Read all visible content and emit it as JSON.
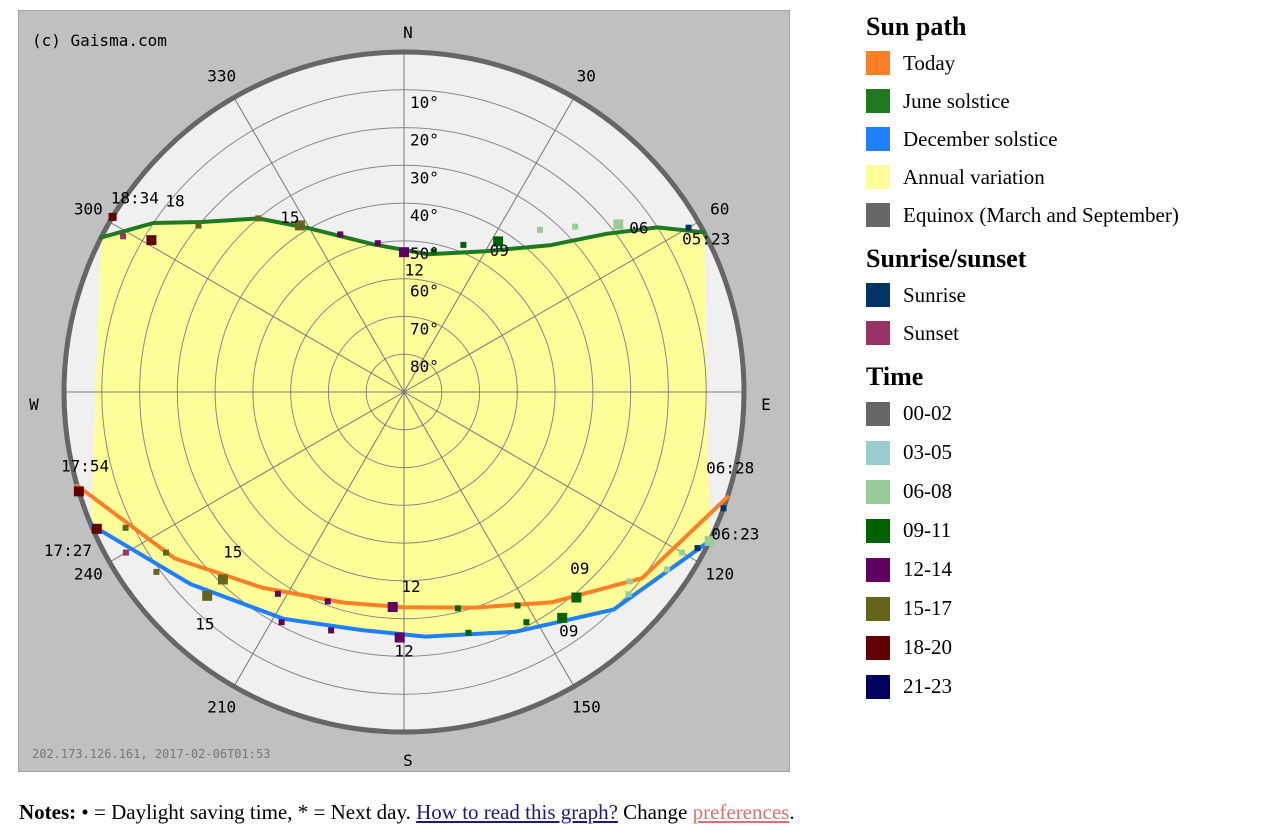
{
  "chart_data": {
    "type": "polar-sun-path",
    "copyright": "(c) Gaisma.com",
    "footer_stamp": "202.173.126.161, 2017-02-06T01:53",
    "cardinals": {
      "N": "N",
      "S": "S",
      "E": "E",
      "W": "W"
    },
    "azimuth_labels": [
      {
        "az": 30,
        "label": "30"
      },
      {
        "az": 60,
        "label": "60"
      },
      {
        "az": 120,
        "label": "120"
      },
      {
        "az": 150,
        "label": "150"
      },
      {
        "az": 210,
        "label": "210"
      },
      {
        "az": 240,
        "label": "240"
      },
      {
        "az": 300,
        "label": "300"
      },
      {
        "az": 330,
        "label": "330"
      }
    ],
    "altitude_labels": [
      "10°",
      "20°",
      "30°",
      "40°",
      "50°",
      "60°",
      "70°",
      "80°"
    ],
    "altitude_rings": [
      0,
      10,
      20,
      30,
      40,
      50,
      60,
      70,
      80
    ],
    "azimuth_spokes": [
      0,
      30,
      60,
      90,
      120,
      150,
      180,
      210,
      240,
      270,
      300,
      330
    ],
    "series": [
      {
        "name": "June solstice",
        "color": "#1f7a1f",
        "points": [
          [
            297,
            0
          ],
          [
            304,
            10
          ],
          [
            310,
            20
          ],
          [
            320,
            30
          ],
          [
            330,
            40
          ],
          [
            348,
            50
          ],
          [
            10,
            53
          ],
          [
            30,
            47
          ],
          [
            45,
            35
          ],
          [
            52,
            22
          ],
          [
            57,
            10
          ],
          [
            62,
            0
          ]
        ]
      },
      {
        "name": "Today",
        "color": "#ff7f27",
        "points": [
          [
            254,
            0
          ],
          [
            234,
            15
          ],
          [
            216,
            26
          ],
          [
            196,
            32
          ],
          [
            180,
            33
          ],
          [
            162,
            30
          ],
          [
            145,
            22
          ],
          [
            128,
            10
          ],
          [
            108,
            0
          ]
        ]
      },
      {
        "name": "December solstice",
        "color": "#1e7fff",
        "points": [
          [
            247,
            0
          ],
          [
            228,
            14
          ],
          [
            208,
            22
          ],
          [
            190,
            26
          ],
          [
            175,
            25
          ],
          [
            155,
            20
          ],
          [
            136,
            10
          ],
          [
            116,
            0
          ]
        ]
      }
    ],
    "hour_markers": [
      {
        "az": 301,
        "alt": 0,
        "color": "#610000",
        "size": 8
      },
      {
        "az": 299,
        "alt": 5,
        "color": "#993366",
        "size": 6
      },
      {
        "az": 301,
        "alt": 12,
        "color": "#610000",
        "size": 10
      },
      {
        "az": 309,
        "alt": 20,
        "color": "#656519",
        "size": 6
      },
      {
        "az": 320,
        "alt": 30,
        "color": "#656519",
        "size": 6
      },
      {
        "az": 328,
        "alt": 38,
        "color": "#656519",
        "size": 10
      },
      {
        "az": 338,
        "alt": 45,
        "color": "#610061",
        "size": 6
      },
      {
        "az": 350,
        "alt": 50,
        "color": "#610061",
        "size": 6
      },
      {
        "az": 0,
        "alt": 53,
        "color": "#610061",
        "size": 10
      },
      {
        "az": 12,
        "alt": 52,
        "color": "#006100",
        "size": 6
      },
      {
        "az": 22,
        "alt": 48,
        "color": "#006100",
        "size": 6
      },
      {
        "az": 32,
        "alt": 43,
        "color": "#006100",
        "size": 10
      },
      {
        "az": 40,
        "alt": 34,
        "color": "#99cc99",
        "size": 6
      },
      {
        "az": 46,
        "alt": 27,
        "color": "#99cc99",
        "size": 6
      },
      {
        "az": 52,
        "alt": 18,
        "color": "#99cc99",
        "size": 10
      },
      {
        "az": 60,
        "alt": 3,
        "color": "#003366",
        "size": 6
      },
      {
        "az": 253,
        "alt": 0,
        "color": "#610000",
        "size": 10
      },
      {
        "az": 244,
        "alt": 8,
        "color": "#656519",
        "size": 6
      },
      {
        "az": 236,
        "alt": 14,
        "color": "#656519",
        "size": 6
      },
      {
        "az": 224,
        "alt": 21,
        "color": "#656519",
        "size": 10
      },
      {
        "az": 212,
        "alt": 27,
        "color": "#610061",
        "size": 6
      },
      {
        "az": 200,
        "alt": 31,
        "color": "#610061",
        "size": 6
      },
      {
        "az": 183,
        "alt": 33,
        "color": "#610061",
        "size": 10
      },
      {
        "az": 166,
        "alt": 31,
        "color": "#006100",
        "size": 6
      },
      {
        "az": 152,
        "alt": 26,
        "color": "#006100",
        "size": 6
      },
      {
        "az": 140,
        "alt": 19,
        "color": "#006100",
        "size": 10
      },
      {
        "az": 130,
        "alt": 12,
        "color": "#99cc99",
        "size": 6
      },
      {
        "az": 120,
        "alt": 5,
        "color": "#99cc99",
        "size": 6
      },
      {
        "az": 110,
        "alt": 0,
        "color": "#003366",
        "size": 6
      },
      {
        "az": 246,
        "alt": 1,
        "color": "#610000",
        "size": 10
      },
      {
        "az": 240,
        "alt": 5,
        "color": "#993366",
        "size": 6
      },
      {
        "az": 234,
        "alt": 9,
        "color": "#656519",
        "size": 6
      },
      {
        "az": 224,
        "alt": 15,
        "color": "#656519",
        "size": 10
      },
      {
        "az": 208,
        "alt": 21,
        "color": "#610061",
        "size": 6
      },
      {
        "az": 197,
        "alt": 24,
        "color": "#610061",
        "size": 6
      },
      {
        "az": 181,
        "alt": 25,
        "color": "#610061",
        "size": 10
      },
      {
        "az": 165,
        "alt": 24,
        "color": "#006100",
        "size": 6
      },
      {
        "az": 152,
        "alt": 21,
        "color": "#006100",
        "size": 6
      },
      {
        "az": 145,
        "alt": 17,
        "color": "#006100",
        "size": 10
      },
      {
        "az": 132,
        "alt": 10,
        "color": "#99cc99",
        "size": 6
      },
      {
        "az": 124,
        "alt": 6,
        "color": "#99cc99",
        "size": 6
      },
      {
        "az": 118,
        "alt": 2,
        "color": "#003366",
        "size": 6
      },
      {
        "az": 116,
        "alt": 0,
        "color": "#99cc99",
        "size": 10
      }
    ],
    "annotations": [
      {
        "text": "18:34",
        "az": 305,
        "alt": 3
      },
      {
        "text": "18",
        "az": 309,
        "alt": 12
      },
      {
        "text": "15",
        "az": 326,
        "alt": 36
      },
      {
        "text": "12",
        "az": 5,
        "alt": 59
      },
      {
        "text": "09",
        "az": 35,
        "alt": 46
      },
      {
        "text": "06",
        "az": 56,
        "alt": 15
      },
      {
        "text": "05:23",
        "az": 64,
        "alt": 1
      },
      {
        "text": "17:54",
        "az": 256,
        "alt": 3
      },
      {
        "text": "15",
        "az": 226,
        "alt": 27
      },
      {
        "text": "12",
        "az": 178,
        "alt": 37
      },
      {
        "text": "09",
        "az": 136,
        "alt": 23
      },
      {
        "text": "06:28",
        "az": 104,
        "alt": 1
      },
      {
        "text": "17:27",
        "az": 244,
        "alt": -9
      },
      {
        "text": "15",
        "az": 220,
        "alt": 8
      },
      {
        "text": "12",
        "az": 180,
        "alt": 20
      },
      {
        "text": "09",
        "az": 146,
        "alt": 12
      },
      {
        "text": "06:23",
        "az": 114,
        "alt": -6
      }
    ]
  },
  "legend": {
    "sun_path": {
      "title": "Sun path",
      "items": [
        {
          "label": "Today",
          "color": "#ff7f27"
        },
        {
          "label": "June solstice",
          "color": "#1f7a1f"
        },
        {
          "label": "December solstice",
          "color": "#1e7fff"
        },
        {
          "label": "Annual variation",
          "color": "#ffff99"
        },
        {
          "label": "Equinox (March and September)",
          "color": "#666666"
        }
      ]
    },
    "sunrise_sunset": {
      "title": "Sunrise/sunset",
      "items": [
        {
          "label": "Sunrise",
          "color": "#003366"
        },
        {
          "label": "Sunset",
          "color": "#993366"
        }
      ]
    },
    "time": {
      "title": "Time",
      "items": [
        {
          "label": "00-02",
          "color": "#666666"
        },
        {
          "label": "03-05",
          "color": "#99cccc"
        },
        {
          "label": "06-08",
          "color": "#99cc99"
        },
        {
          "label": "09-11",
          "color": "#006100"
        },
        {
          "label": "12-14",
          "color": "#610061"
        },
        {
          "label": "15-17",
          "color": "#656519"
        },
        {
          "label": "18-20",
          "color": "#610000"
        },
        {
          "label": "21-23",
          "color": "#000061"
        }
      ]
    }
  },
  "notes": {
    "label": "Notes:",
    "text1": " • = Daylight saving time, * = Next day. ",
    "link1": "How to read this graph?",
    "text2": " Change ",
    "link2": "preferences",
    "text3": "."
  }
}
